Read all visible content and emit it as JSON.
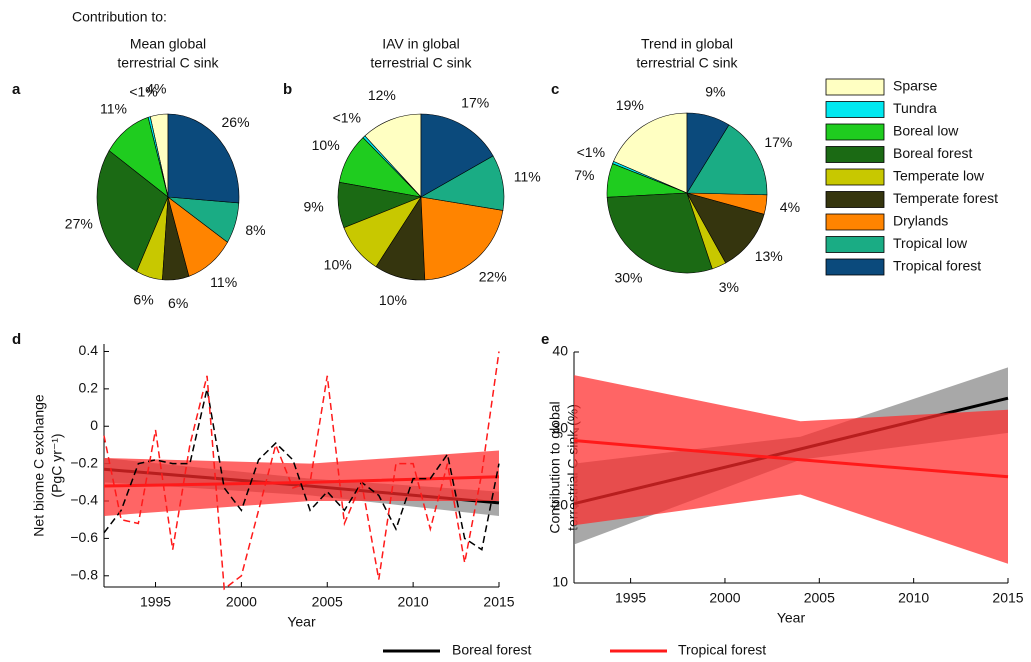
{
  "header": "Contribution to:",
  "chart_data": [
    {
      "type": "pie",
      "panel": "a",
      "title": [
        "Mean global",
        "terrestrial C sink"
      ],
      "categories": [
        "Sparse",
        "Tundra",
        "Boreal low",
        "Boreal forest",
        "Temperate low",
        "Temperate forest",
        "Drylands",
        "Tropical low",
        "Tropical forest"
      ],
      "values": [
        4,
        0.5,
        11,
        27,
        6,
        6,
        11,
        8,
        26
      ],
      "value_labels": [
        "4%",
        "<1%",
        "11%",
        "27%",
        "6%",
        "6%",
        "11%",
        "8%",
        "26%"
      ],
      "colors": [
        "#ffffc2",
        "#00e8f0",
        "#1fcc1f",
        "#1b6a14",
        "#c8c800",
        "#35350e",
        "#ff8400",
        "#1aac84",
        "#0b4a7c"
      ]
    },
    {
      "type": "pie",
      "panel": "b",
      "title": [
        "IAV in global",
        "terrestrial C sink"
      ],
      "categories": [
        "Sparse",
        "Tundra",
        "Boreal low",
        "Boreal forest",
        "Temperate low",
        "Temperate forest",
        "Drylands",
        "Tropical low",
        "Tropical forest"
      ],
      "values": [
        12,
        0.5,
        10,
        9,
        10,
        10,
        22,
        11,
        17
      ],
      "value_labels": [
        "12%",
        "<1%",
        "10%",
        "9%",
        "10%",
        "10%",
        "22%",
        "11%",
        "17%"
      ],
      "colors": [
        "#ffffc2",
        "#00e8f0",
        "#1fcc1f",
        "#1b6a14",
        "#c8c800",
        "#35350e",
        "#ff8400",
        "#1aac84",
        "#0b4a7c"
      ]
    },
    {
      "type": "pie",
      "panel": "c",
      "title": [
        "Trend in global",
        "terrestrial C sink"
      ],
      "categories": [
        "Sparse",
        "Tundra",
        "Boreal low",
        "Boreal forest",
        "Temperate low",
        "Temperate forest",
        "Drylands",
        "Tropical low",
        "Tropical forest"
      ],
      "values": [
        19,
        0.5,
        7,
        30,
        3,
        13,
        4,
        17,
        9
      ],
      "value_labels": [
        "19%",
        "<1%",
        "7%",
        "30%",
        "3%",
        "13%",
        "4%",
        "17%",
        "9%"
      ],
      "colors": [
        "#ffffc2",
        "#00e8f0",
        "#1fcc1f",
        "#1b6a14",
        "#c8c800",
        "#35350e",
        "#ff8400",
        "#1aac84",
        "#0b4a7c"
      ]
    },
    {
      "type": "line",
      "panel": "d",
      "xlabel": "Year",
      "ylabel": [
        "Net biome C exchange",
        "(PgC yr⁻¹)"
      ],
      "x": [
        1992,
        1993,
        1994,
        1995,
        1996,
        1997,
        1998,
        1999,
        2000,
        2001,
        2002,
        2003,
        2004,
        2005,
        2006,
        2007,
        2008,
        2009,
        2010,
        2011,
        2012,
        2013,
        2014,
        2015
      ],
      "trend_x": [
        1992,
        2004,
        2015
      ],
      "series": [
        {
          "name": "Boreal forest",
          "color": "#000000",
          "band_color": "#7a7a7a",
          "values": [
            -0.57,
            -0.45,
            -0.2,
            -0.18,
            -0.2,
            -0.2,
            0.2,
            -0.33,
            -0.45,
            -0.18,
            -0.09,
            -0.18,
            -0.45,
            -0.35,
            -0.45,
            -0.3,
            -0.37,
            -0.55,
            -0.28,
            -0.28,
            -0.15,
            -0.6,
            -0.66,
            -0.2
          ],
          "trend": [
            -0.23,
            -0.32,
            -0.41
          ],
          "band_lower": [
            -0.3,
            -0.37,
            -0.48
          ],
          "band_upper": [
            -0.17,
            -0.28,
            -0.35
          ]
        },
        {
          "name": "Tropical forest",
          "color": "#ff1a1a",
          "band_color": "#ff2a2a",
          "values": [
            -0.05,
            -0.5,
            -0.52,
            -0.02,
            -0.66,
            -0.1,
            0.27,
            -0.87,
            -0.8,
            -0.45,
            -0.1,
            -0.33,
            -0.3,
            0.27,
            -0.52,
            -0.3,
            -0.82,
            -0.2,
            -0.2,
            -0.55,
            -0.2,
            -0.73,
            -0.25,
            0.4
          ],
          "trend": [
            -0.32,
            -0.3,
            -0.27
          ],
          "band_lower": [
            -0.48,
            -0.4,
            -0.4
          ],
          "band_upper": [
            -0.17,
            -0.2,
            -0.13
          ]
        }
      ],
      "xlim": [
        1992,
        2015
      ],
      "ylim": [
        -0.86,
        0.44
      ],
      "xticks": [
        1995,
        2000,
        2005,
        2010,
        2015
      ],
      "yticks": [
        0.4,
        0.2,
        0,
        {
          "value": -0.2,
          "label": "−0.2"
        },
        {
          "value": -0.4,
          "label": "−0.4"
        },
        {
          "value": -0.6,
          "label": "−0.6"
        },
        {
          "value": -0.8,
          "label": "−0.8"
        }
      ],
      "grid": false
    },
    {
      "type": "line",
      "panel": "e",
      "xlabel": "Year",
      "ylabel": [
        "Contribution to global",
        "terrestrial C sink (%)"
      ],
      "x": [
        1992,
        2004,
        2015
      ],
      "series": [
        {
          "color": "#000000",
          "band_color": "#7a7a7a",
          "values": [
            20.3,
            27.4,
            34
          ],
          "band_lower": [
            15,
            26,
            29.5
          ],
          "band_upper": [
            25.5,
            29,
            38
          ]
        },
        {
          "color": "#ff1a1a",
          "band_color": "#ff2a2a",
          "values": [
            28.5,
            26,
            23.8
          ],
          "band_lower": [
            17.5,
            21.5,
            12.5
          ],
          "band_upper": [
            37,
            31,
            32.5
          ]
        }
      ],
      "xlim": [
        1992,
        2015
      ],
      "ylim": [
        10,
        40
      ],
      "xticks": [
        1995,
        2000,
        2005,
        2010,
        2015
      ],
      "yticks": [
        10,
        20,
        30,
        40
      ],
      "grid": false
    }
  ]
}
